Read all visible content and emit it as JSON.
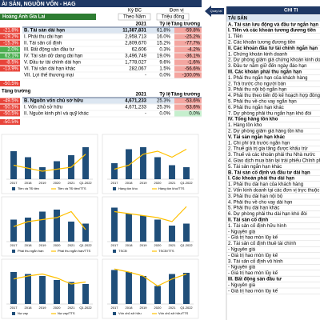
{
  "header": {
    "title": "ÀI SẢN, NGUỒN VỐN - HAG",
    "period_label": "Kỳ BC",
    "unit_label": "Đơn vị",
    "company": "Hoàng Anh Gia Lai",
    "period": "Theo Năm",
    "unit": "Triệu đồng",
    "back_button": "Quay lại",
    "detail_title": "CHI TI"
  },
  "assets_table": {
    "columns": [
      "2021",
      "Tỷ lệ",
      "Tăng trưởng"
    ],
    "rows": [
      {
        "side": "-21.8%",
        "name": "B. Tài sản dài hạn",
        "value": "11,387,831",
        "ratio": "61.8%",
        "growth": "-59.8%"
      },
      {
        "side": "-19.2%",
        "name": "I. Phải thu dài hạn",
        "value": "2,958,713",
        "ratio": "16.0%",
        "growth": "-25.2%"
      },
      {
        "side": "-15.3%",
        "name": "II. Tài sản cố định",
        "value": "2,809,670",
        "ratio": "15.2%",
        "growth": "-77.7%"
      },
      {
        "side": "2.0%",
        "name": "III. Bất động sản đầu tư",
        "value": "62,606",
        "ratio": "0.3%",
        "growth": "-4.2%"
      },
      {
        "side": "62.1%",
        "name": "IV. Tài sản dở dang dài hạn",
        "value": "3,496,749",
        "ratio": "19.0%",
        "growth": "-36.1%"
      },
      {
        "side": "-8.5%",
        "name": "V. Đầu tư tài chính dài hạn",
        "value": "1,778,027",
        "ratio": "9.6%",
        "growth": "-1.6%"
      },
      {
        "side": "-13.9%",
        "name": "VI. Tài sản dài hạn khác",
        "value": "282,067",
        "ratio": "1.5%",
        "growth": "-56.6%"
      },
      {
        "side": "",
        "name": "VII. Lợi thế thương mại",
        "value": "-",
        "ratio": "0.0%",
        "growth": "-100.0%"
      }
    ],
    "footer": "-50.5%"
  },
  "equity_table": {
    "side_header": "Tăng trưởng",
    "columns": [
      "2021",
      "Tỷ lệ",
      "Tăng trưởng"
    ],
    "rows": [
      {
        "side": "-49.5%",
        "name": "B. Nguồn vốn chủ sở hữu",
        "value": "4,671,233",
        "ratio": "25.3%",
        "growth": "-53.6%"
      },
      {
        "side": "-50.5%",
        "name": "I. Vốn chủ sở hữu",
        "value": "4,671,233",
        "ratio": "25.3%",
        "growth": "-53.6%"
      },
      {
        "side": "-50.5%",
        "name": "II. Nguồn kinh phí và quỹ khác",
        "value": "-",
        "ratio": "0.0%",
        "growth": "0.0%"
      }
    ],
    "footer": "-50.5%"
  },
  "chart_data": [
    {
      "type": "combo",
      "categories": [
        "2017",
        "2018",
        "2019",
        "2020",
        "2021",
        "Q1.2022"
      ],
      "ylim": [
        0,
        100
      ],
      "y2lim": [
        0,
        40
      ],
      "series": [
        {
          "name": "Tiền và TĐ tiền",
          "color": "#1f4e79",
          "values": [
            70,
            55,
            30,
            45,
            60,
            80
          ]
        },
        {
          "name": "Tiền và TĐ tiền/TTS",
          "color": "#ffc000",
          "axis": "y2",
          "values": [
            14,
            11,
            8,
            10,
            12,
            25
          ]
        }
      ]
    },
    {
      "type": "combo",
      "categories": [
        "2017",
        "2018",
        "2019",
        "2020",
        "2021",
        "Q1.2022"
      ],
      "ylim": [
        0,
        100
      ],
      "y2lim": [
        0,
        40
      ],
      "series": [
        {
          "name": "Hàng tồn kho",
          "color": "#1f4e79",
          "values": [
            40,
            75,
            80,
            55,
            35,
            30
          ]
        },
        {
          "name": "Hàng tồn kho/TTS",
          "color": "#ffc000",
          "axis": "y2",
          "values": [
            10,
            14,
            25,
            28,
            22,
            30
          ]
        }
      ]
    },
    {
      "type": "combo",
      "categories": [
        "2017",
        "2018",
        "2019",
        "2020",
        "2021",
        "Q1.2022"
      ],
      "ylim": [
        0,
        100
      ],
      "y2lim": [
        0,
        40
      ],
      "series": [
        {
          "name": "Phải thu ngắn hạn",
          "color": "#1f4e79",
          "values": [
            55,
            60,
            75,
            80,
            50,
            45
          ]
        },
        {
          "name": "Phải thu ngắn hạn/TTS",
          "color": "#ffc000",
          "axis": "y2",
          "values": [
            15,
            20,
            22,
            24,
            30,
            12
          ]
        }
      ]
    },
    {
      "type": "combo",
      "categories": [
        "2017",
        "2018",
        "2019",
        "2020",
        "2021",
        "Q1.2022"
      ],
      "ylim": [
        0,
        100
      ],
      "y2lim": [
        0,
        40
      ],
      "series": [
        {
          "name": "TSCĐ",
          "color": "#1f4e79",
          "values": [
            85,
            70,
            65,
            55,
            40,
            45
          ]
        },
        {
          "name": "TSCĐ/TTS",
          "color": "#ffc000",
          "axis": "y2",
          "values": [
            30,
            28,
            26,
            24,
            20,
            35
          ]
        }
      ]
    },
    {
      "type": "combo",
      "categories": [
        "2017",
        "2018",
        "2019",
        "2020",
        "2021",
        "Q1.2022"
      ],
      "ylim": [
        0,
        100
      ],
      "y2lim": [
        0,
        40
      ],
      "series": [
        {
          "name": "Nợ vay",
          "color": "#1f4e79",
          "values": [
            80,
            75,
            70,
            60,
            55,
            50
          ]
        },
        {
          "name": "Nợ vay/TTS",
          "color": "#ffc000",
          "axis": "y2",
          "values": [
            25,
            28,
            30,
            26,
            20,
            22
          ]
        }
      ]
    },
    {
      "type": "combo",
      "categories": [
        "2017",
        "2018",
        "2019",
        "2020",
        "2021",
        "Q1.2022"
      ],
      "ylim": [
        0,
        100
      ],
      "y2lim": [
        0,
        40
      ],
      "series": [
        {
          "name": "Vốn chủ sở hữu",
          "color": "#1f4e79",
          "values": [
            85,
            80,
            70,
            45,
            75,
            78
          ]
        },
        {
          "name": "Vốn chủ sở hữu/TTS",
          "color": "#ffc000",
          "axis": "y2",
          "values": [
            35,
            32,
            28,
            18,
            25,
            30
          ]
        }
      ]
    }
  ],
  "detail": {
    "section": "TÀI SẢN",
    "items": [
      {
        "text": "A. Tài sản lưu động và đầu tư ngắn hạn",
        "bold": true
      },
      {
        "text": "I. Tiền và các khoản tương đương tiền",
        "bold": true
      },
      {
        "text": "1. Tiền",
        "bold": false
      },
      {
        "text": "2. Các khoản tương đương tiền",
        "bold": false
      },
      {
        "text": "II. Các khoản đầu tư tài chính ngắn hạn",
        "bold": true
      },
      {
        "text": "1. Chứng khoán kinh doanh",
        "bold": false
      },
      {
        "text": "2. Dự phòng giảm giá chứng khoán kinh doanh",
        "bold": false
      },
      {
        "text": "3. Đầu tư nắm giữ đến ngày đáo hạn",
        "bold": false
      },
      {
        "text": "III. Các khoản phải thu ngắn hạn",
        "bold": true
      },
      {
        "text": "1. Phải thu ngắn hạn của khách hàng",
        "bold": false
      },
      {
        "text": "2. Trả trước cho người bán",
        "bold": false
      },
      {
        "text": "3. Phải thu nội bộ ngắn hạn",
        "bold": false
      },
      {
        "text": "4. Phải thu theo tiến độ kế hoạch hợp đồng xây dựng",
        "bold": false
      },
      {
        "text": "5. Phải thu về cho vay ngắn hạn",
        "bold": false
      },
      {
        "text": "6. Phải thu ngắn hạn khác",
        "bold": false
      },
      {
        "text": "7. Dự phòng phải thu ngắn hạn khó đòi",
        "bold": false
      },
      {
        "text": "IV. Tổng hàng tồn kho",
        "bold": true
      },
      {
        "text": "1. Hàng tồn kho",
        "bold": false
      },
      {
        "text": "2. Dự phòng giảm giá hàng tồn kho",
        "bold": false
      },
      {
        "text": "V. Tài sản ngắn hạn khác",
        "bold": true
      },
      {
        "text": "1. Chi phí trả trước ngắn hạn",
        "bold": false
      },
      {
        "text": "2. Thuế giá trị gia tăng được khấu trừ",
        "bold": false
      },
      {
        "text": "3. Thuế và các khoản phải thu Nhà nước",
        "bold": false
      },
      {
        "text": "4. Giao dịch mua bán lại trái phiếu Chính phủ",
        "bold": false
      },
      {
        "text": "5. Tài sản ngắn hạn khác",
        "bold": false
      },
      {
        "text": "B. Tài sản cố định và đầu tư dài hạn",
        "bold": true
      },
      {
        "text": "I. Các khoản phải thu dài hạn",
        "bold": true
      },
      {
        "text": "1. Phải thu dài hạn của khách hàng",
        "bold": false
      },
      {
        "text": "2. Vốn kinh doanh tại các đơn vị trực thuộc",
        "bold": false
      },
      {
        "text": "3. Phải thu dài hạn nội bộ",
        "bold": false
      },
      {
        "text": "4. Phải thu về cho vay dài hạn",
        "bold": false
      },
      {
        "text": "5. Phải thu dài hạn khác",
        "bold": false
      },
      {
        "text": "6. Dự phòng phải thu dài hạn khó đòi",
        "bold": false
      },
      {
        "text": "II. Tài sản cố định",
        "bold": true
      },
      {
        "text": "1. Tài sản cố định hữu hình",
        "bold": false
      },
      {
        "text": "- Nguyên giá",
        "bold": false
      },
      {
        "text": "- Giá trị hao mòn lũy kế",
        "bold": false
      },
      {
        "text": "2. Tài sản cố định thuê tài chính",
        "bold": false
      },
      {
        "text": "- Nguyên giá",
        "bold": false
      },
      {
        "text": "- Giá trị hao mòn lũy kế",
        "bold": false
      },
      {
        "text": "3. Tài sản cố định vô hình",
        "bold": false
      },
      {
        "text": "- Nguyên giá",
        "bold": false
      },
      {
        "text": "- Giá trị hao mòn lũy kế",
        "bold": false
      },
      {
        "text": "III. Bất động sản đầu tư",
        "bold": true
      },
      {
        "text": "- Nguyên giá",
        "bold": false
      },
      {
        "text": "- Giá trị hao mòn lũy kế",
        "bold": false
      }
    ]
  }
}
